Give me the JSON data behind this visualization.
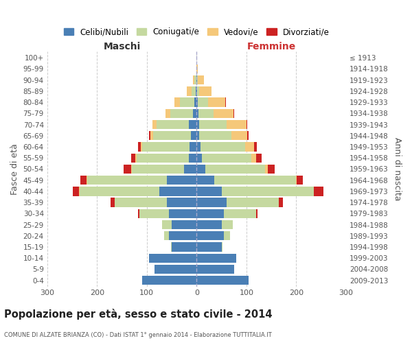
{
  "age_groups": [
    "100+",
    "95-99",
    "90-94",
    "85-89",
    "80-84",
    "75-79",
    "70-74",
    "65-69",
    "60-64",
    "55-59",
    "50-54",
    "45-49",
    "40-44",
    "35-39",
    "30-34",
    "25-29",
    "20-24",
    "15-19",
    "10-14",
    "5-9",
    "0-4"
  ],
  "birth_years": [
    "≤ 1913",
    "1914-1918",
    "1919-1923",
    "1924-1928",
    "1929-1933",
    "1934-1938",
    "1939-1943",
    "1944-1948",
    "1949-1953",
    "1954-1958",
    "1959-1963",
    "1964-1968",
    "1969-1973",
    "1974-1978",
    "1979-1983",
    "1984-1988",
    "1989-1993",
    "1994-1998",
    "1999-2003",
    "2004-2008",
    "2009-2013"
  ],
  "maschi": {
    "celibi": [
      0,
      0,
      1,
      2,
      5,
      8,
      15,
      12,
      14,
      16,
      25,
      60,
      75,
      60,
      55,
      50,
      55,
      50,
      95,
      85,
      110
    ],
    "coniugati": [
      0,
      0,
      4,
      8,
      28,
      45,
      65,
      75,
      95,
      105,
      105,
      160,
      160,
      105,
      60,
      20,
      10,
      2,
      0,
      0,
      0
    ],
    "vedovi": [
      0,
      1,
      3,
      10,
      12,
      10,
      8,
      6,
      3,
      2,
      2,
      1,
      1,
      0,
      0,
      0,
      0,
      0,
      0,
      0,
      0
    ],
    "divorziati": [
      0,
      0,
      0,
      0,
      0,
      0,
      0,
      2,
      5,
      8,
      14,
      12,
      12,
      8,
      2,
      0,
      0,
      0,
      0,
      0,
      0
    ]
  },
  "femmine": {
    "nubili": [
      0,
      0,
      1,
      1,
      3,
      4,
      5,
      5,
      8,
      10,
      18,
      35,
      50,
      60,
      55,
      50,
      55,
      50,
      80,
      75,
      105
    ],
    "coniugate": [
      0,
      0,
      2,
      4,
      20,
      30,
      55,
      65,
      90,
      100,
      120,
      165,
      185,
      105,
      65,
      22,
      12,
      2,
      0,
      0,
      0
    ],
    "vedove": [
      0,
      2,
      12,
      25,
      35,
      40,
      40,
      32,
      18,
      10,
      5,
      1,
      0,
      0,
      0,
      0,
      0,
      0,
      0,
      0,
      0
    ],
    "divorziate": [
      0,
      0,
      0,
      0,
      1,
      1,
      2,
      2,
      5,
      10,
      14,
      12,
      20,
      8,
      2,
      1,
      0,
      0,
      0,
      0,
      0
    ]
  },
  "colors": {
    "celibi": "#4a7fb5",
    "coniugati": "#c5d9a0",
    "vedovi": "#f5c87a",
    "divorziati": "#cc2222"
  },
  "xlim": 300,
  "title": "Popolazione per età, sesso e stato civile - 2014",
  "subtitle": "COMUNE DI ALZATE BRIANZA (CO) - Dati ISTAT 1° gennaio 2014 - Elaborazione TUTTITALIA.IT",
  "ylabel_left": "Fasce di età",
  "ylabel_right": "Anni di nascita",
  "xlabel_left": "Maschi",
  "xlabel_right": "Femmine",
  "legend_labels": [
    "Celibi/Nubili",
    "Coniugati/e",
    "Vedovi/e",
    "Divorziati/e"
  ],
  "bg_color": "#ffffff",
  "grid_color": "#cccccc"
}
